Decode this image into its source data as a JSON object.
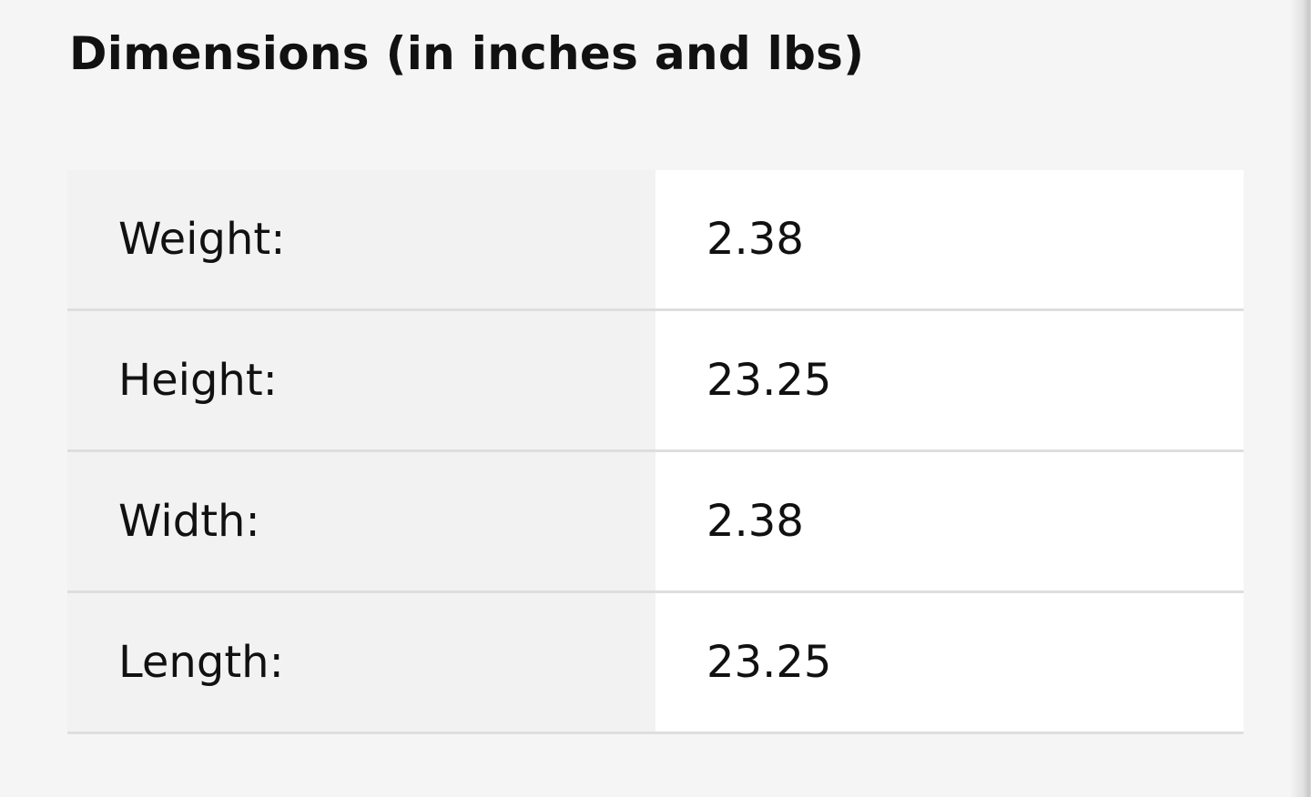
{
  "title": "Dimensions (in inches and lbs)",
  "rows": [
    {
      "label": "Weight:",
      "value": "2.38"
    },
    {
      "label": "Height:",
      "value": "23.25"
    },
    {
      "label": "Width:",
      "value": "2.38"
    },
    {
      "label": "Length:",
      "value": "23.25"
    }
  ]
}
